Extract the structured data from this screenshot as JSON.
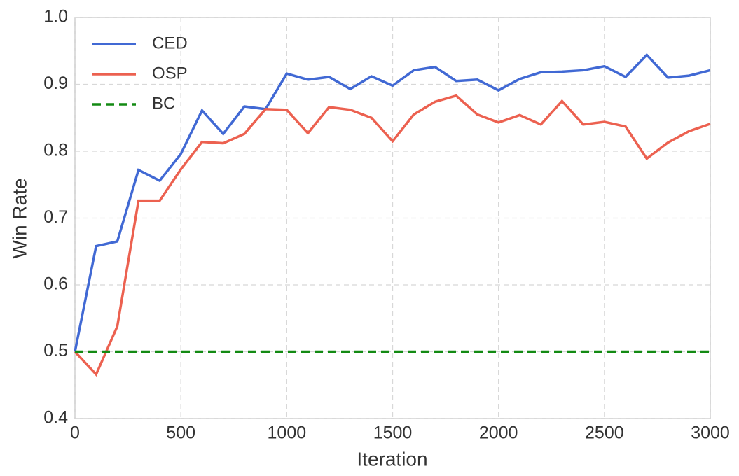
{
  "chart_data": {
    "type": "line",
    "xlabel": "Iteration",
    "ylabel": "Win Rate",
    "x": [
      0,
      100,
      200,
      300,
      400,
      500,
      600,
      700,
      800,
      900,
      1000,
      1100,
      1200,
      1300,
      1400,
      1500,
      1600,
      1700,
      1800,
      1900,
      2000,
      2100,
      2200,
      2300,
      2400,
      2500,
      2600,
      2700,
      2800,
      2900,
      3000
    ],
    "series": [
      {
        "name": "CED",
        "color": "#4169d4",
        "linestyle": "solid",
        "values": [
          0.5,
          0.658,
          0.665,
          0.772,
          0.756,
          0.796,
          0.861,
          0.826,
          0.867,
          0.863,
          0.916,
          0.907,
          0.911,
          0.893,
          0.912,
          0.898,
          0.921,
          0.926,
          0.905,
          0.907,
          0.891,
          0.908,
          0.918,
          0.919,
          0.921,
          0.927,
          0.911,
          0.944,
          0.91,
          0.913,
          0.921
        ]
      },
      {
        "name": "OSP",
        "color": "#ec6150",
        "linestyle": "solid",
        "values": [
          0.5,
          0.466,
          0.538,
          0.726,
          0.726,
          0.773,
          0.814,
          0.812,
          0.826,
          0.863,
          0.862,
          0.827,
          0.866,
          0.862,
          0.85,
          0.815,
          0.855,
          0.874,
          0.883,
          0.855,
          0.843,
          0.854,
          0.84,
          0.875,
          0.84,
          0.844,
          0.837,
          0.789,
          0.813,
          0.83,
          0.841
        ]
      },
      {
        "name": "BC",
        "color": "#138a13",
        "linestyle": "dashed",
        "values": [
          0.5,
          0.5,
          0.5,
          0.5,
          0.5,
          0.5,
          0.5,
          0.5,
          0.5,
          0.5,
          0.5,
          0.5,
          0.5,
          0.5,
          0.5,
          0.5,
          0.5,
          0.5,
          0.5,
          0.5,
          0.5,
          0.5,
          0.5,
          0.5,
          0.5,
          0.5,
          0.5,
          0.5,
          0.5,
          0.5,
          0.5
        ]
      }
    ],
    "xlim": [
      0,
      3000
    ],
    "xticks": [
      0,
      500,
      1000,
      1500,
      2000,
      2500,
      3000
    ],
    "ylim": [
      0.4,
      1.0
    ],
    "yticks": [
      0.4,
      0.5,
      0.6,
      0.7,
      0.8,
      0.9,
      {
        "value": 1.0,
        "label": "1.0"
      }
    ],
    "grid": true,
    "legend": "upper left"
  }
}
